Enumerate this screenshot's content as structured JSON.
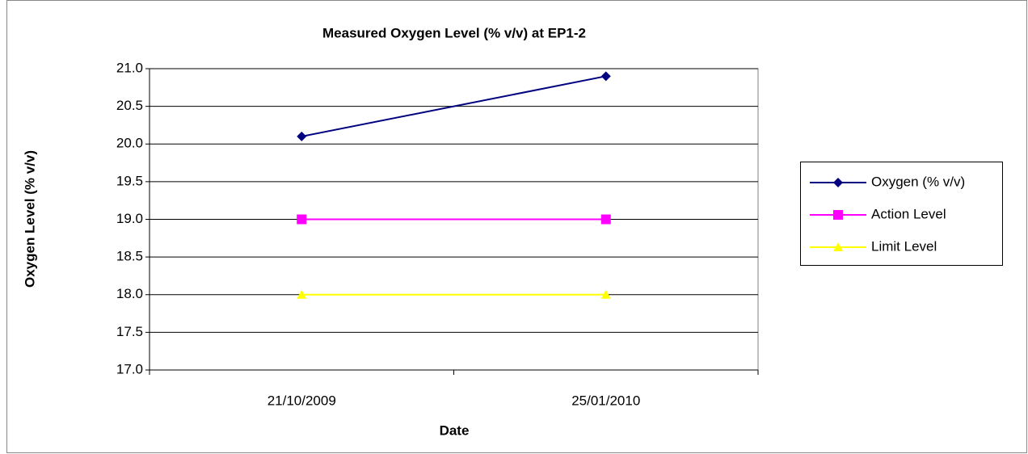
{
  "chart_data": {
    "type": "line",
    "title": "Measured Oxygen Level (% v/v) at EP1-2",
    "x_label": "Date",
    "y_label": "Oxygen Level (% v/v)",
    "categories": [
      "21/10/2009",
      "25/01/2010"
    ],
    "series": [
      {
        "name": "Oxygen (% v/v)",
        "color": "#000080",
        "marker": "diamond",
        "values": [
          20.1,
          20.9
        ]
      },
      {
        "name": "Action Level",
        "color": "#ff00ff",
        "marker": "square",
        "values": [
          19,
          19
        ]
      },
      {
        "name": "Limit Level",
        "color": "#ffff00",
        "marker": "triangle",
        "values": [
          18,
          18
        ]
      }
    ],
    "ylim": [
      17,
      21
    ],
    "yticks": [
      {
        "value": 17,
        "label": "17.0"
      },
      17.5,
      {
        "value": 18,
        "label": "18.0"
      },
      18.5,
      {
        "value": 19,
        "label": "19.0"
      },
      19.5,
      {
        "value": 20,
        "label": "20.0"
      },
      20.5,
      {
        "value": 21,
        "label": "21.0"
      }
    ],
    "grid": true,
    "legend": "right"
  }
}
